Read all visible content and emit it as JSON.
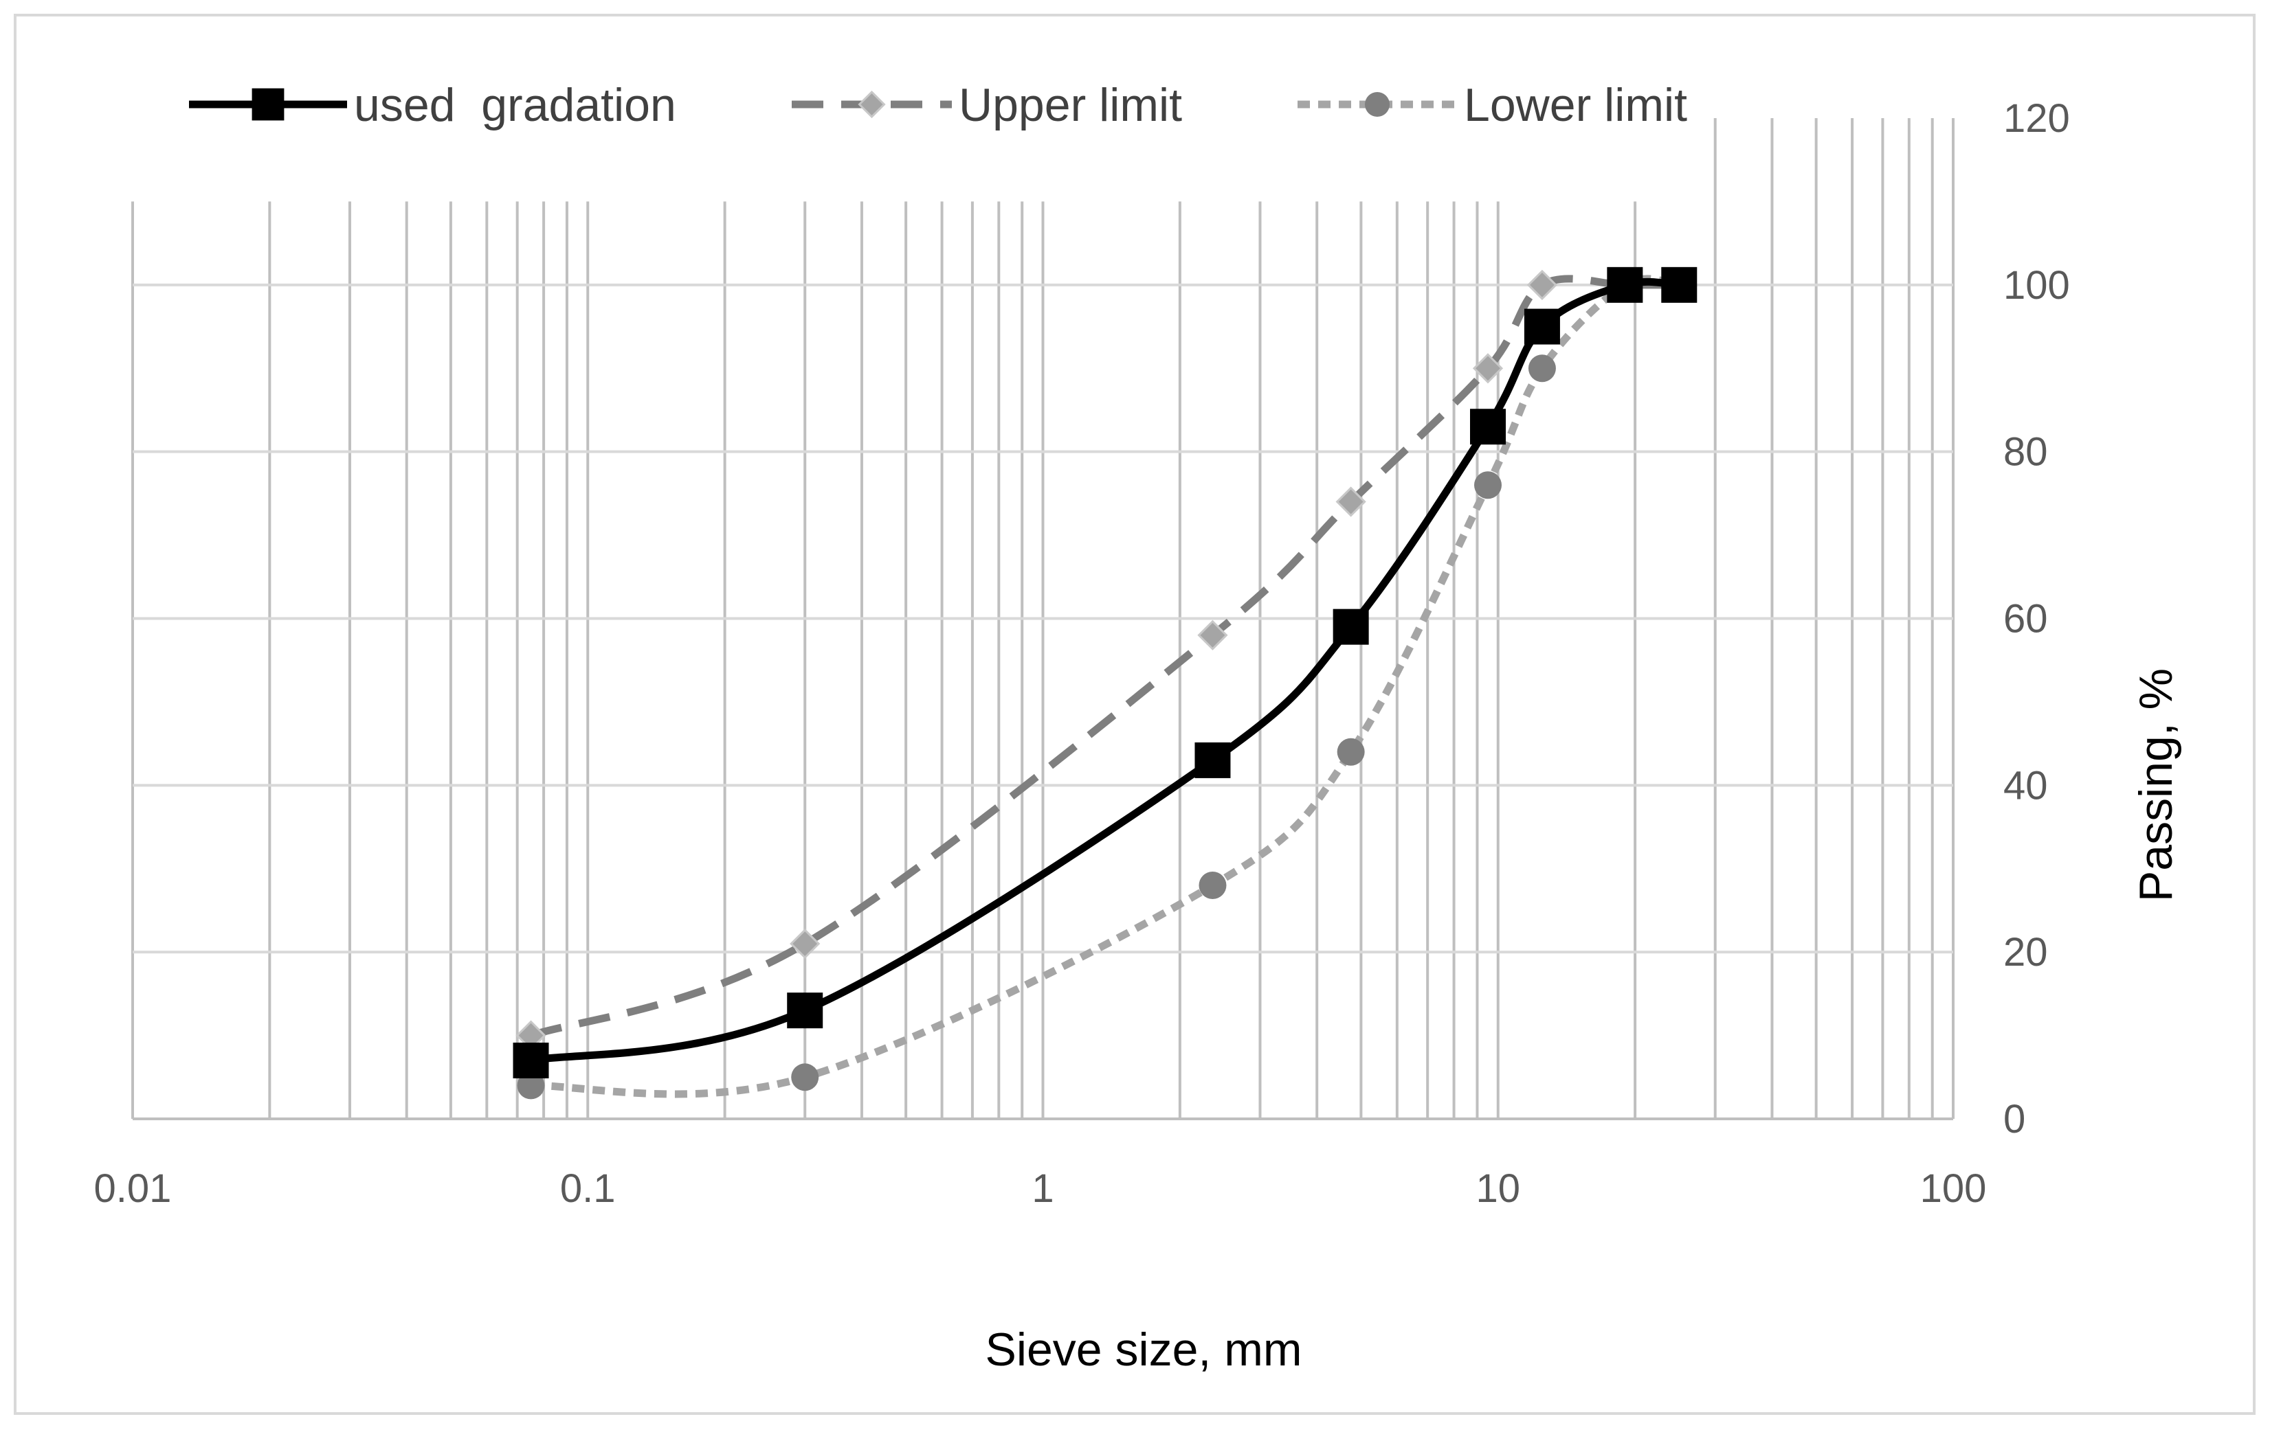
{
  "chart_data": {
    "type": "line",
    "title": "",
    "xlabel": "Sieve size, mm",
    "ylabel": "Passing, %",
    "x_scale": "log",
    "xlim": [
      0.01,
      100
    ],
    "ylim": [
      0,
      120
    ],
    "x_ticks": [
      "0.01",
      "0.1",
      "1",
      "10",
      "100"
    ],
    "y_ticks": [
      "0",
      "20",
      "40",
      "60",
      "80",
      "100",
      "120"
    ],
    "grid": true,
    "y_axis_side": "right",
    "legend_position": "top",
    "series": [
      {
        "name": "used  gradation",
        "color": "#000000",
        "line_style": "solid",
        "marker": "square",
        "x": [
          0.075,
          0.3,
          2.36,
          4.75,
          9.5,
          12.5,
          19,
          25
        ],
        "y": [
          7,
          13,
          43,
          59,
          83,
          95,
          100,
          100
        ]
      },
      {
        "name": "Upper limit",
        "color": "#7f7f7f",
        "marker_color": "#a5a5a5",
        "line_style": "dashed",
        "marker": "diamond",
        "x": [
          0.075,
          0.3,
          2.36,
          4.75,
          9.5,
          12.5,
          19,
          25
        ],
        "y": [
          10,
          21,
          58,
          74,
          90,
          100,
          100,
          100
        ]
      },
      {
        "name": "Lower limit",
        "color": "#a5a5a5",
        "marker_color": "#7f7f7f",
        "line_style": "dotted",
        "marker": "circle",
        "x": [
          0.075,
          0.3,
          2.36,
          4.75,
          9.5,
          12.5,
          19,
          25
        ],
        "y": [
          4,
          5,
          28,
          44,
          76,
          90,
          100,
          100
        ]
      }
    ]
  }
}
